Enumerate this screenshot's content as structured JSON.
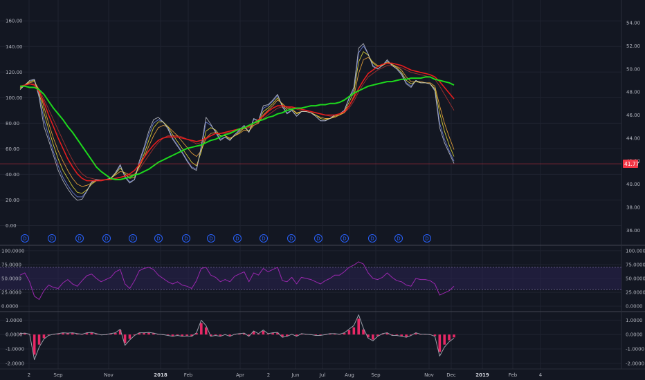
{
  "colors": {
    "background": "#131722",
    "grid": "#1f2330",
    "price": "#c5c8d0",
    "ma_green": "#1ee31e",
    "ma_red": "#f21d1d",
    "ma_orange": "#e8a23a",
    "ma_yellow": "#d9d43a",
    "ma_darkred": "#a83232",
    "ma_blue": "#6b7fd7",
    "rsi_line": "#9c27b0",
    "rsi_band": "#2a2350",
    "hist": "#ff2a6d",
    "osc_line": "#9aa0aa",
    "price_tag": "#f23645",
    "dividend": "#2962ff"
  },
  "chart_data": [
    {
      "panel": "main",
      "type": "line",
      "left_axis": {
        "ticks": [
          "160.00",
          "140.00",
          "120.00",
          "100.00",
          "80.00",
          "60.00",
          "40.00",
          "20.00",
          "0.00"
        ],
        "ylim": [
          -10,
          172
        ]
      },
      "right_axis": {
        "ticks": [
          "54.00",
          "52.00",
          "50.00",
          "48.00",
          "46.00",
          "44.00",
          "42.00",
          "40.00",
          "38.00",
          "36.00"
        ],
        "ylim": [
          35.3,
          55.5
        ]
      },
      "x_axis": {
        "ticks": [
          {
            "label": "2",
            "bold": false
          },
          {
            "label": "Sep",
            "bold": false
          },
          {
            "label": "Nov",
            "bold": false
          },
          {
            "label": "2018",
            "bold": true
          },
          {
            "label": "Feb",
            "bold": false
          },
          {
            "label": "Apr",
            "bold": false
          },
          {
            "label": "2",
            "bold": false
          },
          {
            "label": "Jun",
            "bold": false
          },
          {
            "label": "Jul",
            "bold": false
          },
          {
            "label": "Aug",
            "bold": false
          },
          {
            "label": "Sep",
            "bold": false
          },
          {
            "label": "Nov",
            "bold": false
          },
          {
            "label": "Dec",
            "bold": false
          },
          {
            "label": "2019",
            "bold": true
          },
          {
            "label": "Feb",
            "bold": false
          },
          {
            "label": "4",
            "bold": false
          }
        ]
      },
      "last_price": {
        "label": "41.77",
        "value": 41.77
      },
      "dividend_marker": "D",
      "dividend_count": 16,
      "grid": true,
      "series": [
        {
          "role": "price",
          "color": "#c5c8d0",
          "values": [
            48.2,
            48.6,
            49.0,
            49.1,
            47.5,
            45.0,
            43.8,
            42.5,
            41.2,
            40.3,
            39.6,
            39.0,
            38.6,
            38.7,
            39.4,
            40.2,
            40.4,
            40.3,
            40.4,
            40.5,
            41.0,
            41.7,
            40.6,
            40.1,
            40.4,
            42.0,
            43.2,
            44.6,
            45.6,
            45.8,
            45.4,
            44.8,
            43.9,
            43.3,
            42.7,
            42.0,
            41.4,
            41.2,
            43.3,
            45.8,
            45.2,
            44.5,
            43.8,
            44.1,
            43.8,
            44.3,
            44.7,
            45.1,
            44.5,
            45.7,
            45.5,
            46.8,
            46.9,
            47.3,
            47.8,
            46.7,
            46.1,
            46.4,
            45.9,
            46.3,
            46.3,
            46.2,
            45.9,
            45.5,
            45.5,
            45.7,
            46.0,
            46.1,
            46.4,
            47.5,
            48.4,
            51.8,
            52.2,
            51.3,
            50.2,
            50.0,
            50.3,
            50.8,
            50.3,
            50.0,
            49.5,
            48.7,
            48.4,
            49.0,
            48.8,
            48.8,
            48.7,
            48.1,
            44.9,
            43.6,
            42.7,
            41.8
          ]
        },
        {
          "role": "ma_green",
          "color": "#1ee31e",
          "values": [
            48.5,
            48.5,
            48.4,
            48.4,
            48.2,
            47.8,
            47.2,
            46.6,
            46.1,
            45.6,
            45.0,
            44.5,
            43.9,
            43.3,
            42.7,
            42.1,
            41.5,
            41.1,
            40.8,
            40.5,
            40.4,
            40.4,
            40.5,
            40.6,
            40.8,
            40.9,
            41.1,
            41.3,
            41.6,
            41.9,
            42.1,
            42.3,
            42.5,
            42.7,
            42.9,
            43.1,
            43.2,
            43.3,
            43.4,
            43.6,
            43.8,
            43.9,
            44.1,
            44.3,
            44.4,
            44.6,
            44.8,
            44.9,
            45.1,
            45.3,
            45.5,
            45.6,
            45.8,
            45.9,
            46.1,
            46.2,
            46.4,
            46.5,
            46.6,
            46.6,
            46.7,
            46.8,
            46.8,
            46.9,
            46.9,
            47.0,
            47.0,
            47.1,
            47.3,
            47.6,
            47.9,
            48.1,
            48.3,
            48.5,
            48.6,
            48.7,
            48.8,
            48.9,
            48.9,
            49.0,
            49.1,
            49.1,
            49.2,
            49.2,
            49.2,
            49.3,
            49.3,
            49.1,
            49.0,
            48.9,
            48.8,
            48.6
          ]
        },
        {
          "role": "ma_red",
          "color": "#f21d1d",
          "values": [
            48.5,
            48.6,
            48.7,
            48.6,
            48.0,
            47.1,
            46.0,
            45.0,
            44.0,
            43.1,
            42.2,
            41.5,
            40.9,
            40.5,
            40.3,
            40.3,
            40.3,
            40.3,
            40.4,
            40.4,
            40.5,
            40.6,
            40.7,
            40.9,
            41.2,
            41.7,
            42.3,
            42.9,
            43.4,
            43.8,
            44.0,
            44.1,
            44.1,
            44.1,
            44.0,
            43.9,
            43.8,
            43.7,
            43.8,
            44.0,
            44.2,
            44.4,
            44.4,
            44.5,
            44.6,
            44.7,
            44.8,
            44.9,
            45.0,
            45.3,
            45.6,
            45.9,
            46.3,
            46.6,
            46.8,
            46.8,
            46.7,
            46.7,
            46.6,
            46.5,
            46.4,
            46.3,
            46.2,
            46.1,
            46.0,
            46.0,
            46.0,
            46.1,
            46.3,
            46.8,
            47.5,
            48.3,
            49.0,
            49.6,
            49.9,
            50.2,
            50.4,
            50.5,
            50.5,
            50.4,
            50.3,
            50.1,
            49.9,
            49.8,
            49.7,
            49.6,
            49.5,
            49.3,
            48.9,
            48.4,
            47.9,
            47.4
          ]
        },
        {
          "role": "ma_orange",
          "color": "#e8a23a",
          "values": [
            48.4,
            48.6,
            48.8,
            48.9,
            48.2,
            46.7,
            45.3,
            44.0,
            42.9,
            42.0,
            41.2,
            40.5,
            40.0,
            39.8,
            39.9,
            40.1,
            40.3,
            40.3,
            40.4,
            40.5,
            40.8,
            41.1,
            41.0,
            40.8,
            40.8,
            41.5,
            42.3,
            43.3,
            44.2,
            44.9,
            45.1,
            45.0,
            44.6,
            44.2,
            43.7,
            43.2,
            42.7,
            42.4,
            42.9,
            44.0,
            44.4,
            44.5,
            44.2,
            44.2,
            44.0,
            44.2,
            44.4,
            44.7,
            44.6,
            45.1,
            45.3,
            46.0,
            46.4,
            46.8,
            47.3,
            47.0,
            46.6,
            46.5,
            46.2,
            46.3,
            46.3,
            46.2,
            46.0,
            45.8,
            45.7,
            45.7,
            45.8,
            46.0,
            46.2,
            46.8,
            47.6,
            49.6,
            50.8,
            51.0,
            50.6,
            50.3,
            50.3,
            50.5,
            50.4,
            50.2,
            49.9,
            49.3,
            48.9,
            48.9,
            48.9,
            48.8,
            48.8,
            48.5,
            46.8,
            45.3,
            44.1,
            43.0
          ]
        },
        {
          "role": "ma_yellow",
          "color": "#d9d43a",
          "values": [
            48.3,
            48.6,
            48.9,
            49.0,
            47.9,
            46.2,
            44.8,
            43.4,
            42.2,
            41.2,
            40.5,
            39.8,
            39.3,
            39.2,
            39.5,
            40.0,
            40.3,
            40.3,
            40.4,
            40.5,
            40.9,
            41.4,
            40.9,
            40.5,
            40.6,
            41.6,
            42.6,
            43.8,
            44.9,
            45.4,
            45.4,
            45.0,
            44.3,
            43.7,
            43.1,
            42.5,
            41.9,
            41.6,
            42.8,
            44.6,
            44.9,
            44.7,
            44.2,
            44.2,
            43.9,
            44.2,
            44.5,
            44.9,
            44.6,
            45.3,
            45.4,
            46.3,
            46.6,
            47.0,
            47.5,
            46.9,
            46.4,
            46.5,
            46.1,
            46.3,
            46.3,
            46.2,
            46.0,
            45.7,
            45.6,
            45.7,
            45.9,
            46.0,
            46.3,
            47.1,
            48.0,
            50.6,
            51.5,
            51.2,
            50.5,
            50.2,
            50.3,
            50.6,
            50.4,
            50.1,
            49.7,
            49.0,
            48.7,
            48.9,
            48.8,
            48.8,
            48.7,
            48.3,
            46.2,
            44.6,
            43.4,
            42.4
          ]
        },
        {
          "role": "ma_darkred",
          "color": "#a83232",
          "values": [
            48.5,
            48.6,
            48.7,
            48.7,
            48.2,
            47.4,
            46.5,
            45.6,
            44.7,
            43.8,
            42.9,
            42.1,
            41.4,
            40.9,
            40.6,
            40.5,
            40.4,
            40.4,
            40.4,
            40.4,
            40.5,
            40.6,
            40.7,
            40.7,
            40.9,
            41.3,
            41.9,
            42.5,
            43.1,
            43.6,
            44.0,
            44.2,
            44.2,
            44.2,
            44.1,
            43.9,
            43.7,
            43.5,
            43.6,
            43.9,
            44.2,
            44.4,
            44.4,
            44.4,
            44.5,
            44.6,
            44.7,
            44.8,
            44.9,
            45.1,
            45.4,
            45.7,
            46.0,
            46.3,
            46.6,
            46.7,
            46.7,
            46.6,
            46.5,
            46.4,
            46.4,
            46.3,
            46.2,
            46.1,
            46.0,
            45.9,
            45.9,
            46.0,
            46.2,
            46.6,
            47.2,
            48.0,
            48.7,
            49.3,
            49.6,
            49.9,
            50.1,
            50.3,
            50.3,
            50.2,
            50.1,
            49.9,
            49.7,
            49.6,
            49.5,
            49.4,
            49.3,
            49.1,
            48.5,
            47.8,
            47.1,
            46.4
          ]
        },
        {
          "role": "ma_blue",
          "color": "#6b7fd7",
          "values": [
            48.3,
            48.6,
            48.9,
            49.1,
            47.7,
            45.6,
            44.2,
            42.8,
            41.6,
            40.6,
            39.9,
            39.3,
            38.9,
            38.9,
            39.4,
            40.1,
            40.4,
            40.3,
            40.4,
            40.5,
            40.9,
            41.6,
            40.7,
            40.2,
            40.4,
            41.8,
            43.0,
            44.3,
            45.3,
            45.6,
            45.4,
            44.9,
            44.0,
            43.4,
            42.8,
            42.1,
            41.5,
            41.3,
            43.1,
            45.4,
            45.1,
            44.6,
            43.9,
            44.1,
            43.8,
            44.3,
            44.6,
            45.0,
            44.5,
            45.6,
            45.5,
            46.6,
            46.8,
            47.2,
            47.7,
            46.8,
            46.2,
            46.4,
            45.9,
            46.3,
            46.3,
            46.2,
            45.9,
            45.5,
            45.5,
            45.7,
            46.0,
            46.1,
            46.4,
            47.4,
            48.2,
            51.4,
            52.0,
            51.3,
            50.3,
            50.0,
            50.3,
            50.7,
            50.3,
            50.0,
            49.6,
            48.8,
            48.5,
            49.0,
            48.8,
            48.8,
            48.7,
            48.2,
            45.3,
            43.9,
            42.9,
            42.0
          ]
        }
      ]
    },
    {
      "panel": "rsi",
      "type": "line",
      "axis_ticks": [
        "100.0000",
        "75.0000",
        "50.0000",
        "25.0000",
        "0.0000"
      ],
      "ylim": [
        -6,
        106
      ],
      "band": [
        30,
        70
      ],
      "values": [
        56,
        60,
        44,
        18,
        12,
        28,
        38,
        34,
        32,
        42,
        48,
        40,
        36,
        46,
        55,
        58,
        50,
        44,
        48,
        52,
        62,
        66,
        40,
        32,
        46,
        64,
        68,
        70,
        66,
        56,
        50,
        44,
        40,
        44,
        38,
        36,
        32,
        46,
        68,
        70,
        56,
        52,
        44,
        48,
        44,
        54,
        58,
        62,
        44,
        60,
        56,
        68,
        62,
        66,
        70,
        46,
        44,
        52,
        40,
        52,
        50,
        48,
        44,
        40,
        46,
        50,
        56,
        56,
        62,
        70,
        74,
        80,
        76,
        60,
        50,
        48,
        52,
        60,
        52,
        46,
        44,
        38,
        36,
        50,
        48,
        48,
        46,
        40,
        20,
        24,
        28,
        36
      ]
    },
    {
      "panel": "oscillator",
      "type": "line",
      "axis_ticks": [
        "1.0000",
        "0.0000",
        "-1.0000",
        "-2.0000"
      ],
      "ylim": [
        -2.2,
        1.45
      ],
      "values": [
        0.05,
        0.08,
        0.02,
        -1.4,
        -0.7,
        -0.25,
        -0.05,
        0.02,
        0.05,
        0.1,
        0.08,
        0.1,
        0.05,
        0.02,
        0.1,
        0.12,
        0.05,
        -0.02,
        0.0,
        0.05,
        0.1,
        0.3,
        -0.6,
        -0.3,
        -0.05,
        0.1,
        0.1,
        0.12,
        0.08,
        0.02,
        0.0,
        -0.05,
        -0.1,
        -0.05,
        -0.1,
        -0.08,
        -0.1,
        0.1,
        0.8,
        0.5,
        -0.1,
        -0.05,
        -0.1,
        0.0,
        -0.1,
        0.02,
        0.05,
        0.08,
        -0.1,
        0.2,
        0.05,
        0.25,
        0.05,
        0.1,
        0.12,
        -0.15,
        -0.1,
        0.02,
        -0.1,
        0.05,
        0.02,
        0.0,
        -0.05,
        -0.05,
        0.0,
        0.05,
        0.05,
        0.02,
        0.1,
        0.3,
        0.5,
        1.1,
        0.35,
        -0.2,
        -0.35,
        -0.1,
        0.05,
        0.1,
        -0.05,
        -0.05,
        -0.1,
        -0.15,
        -0.05,
        0.1,
        0.02,
        0.02,
        0.0,
        -0.1,
        -1.2,
        -0.7,
        -0.4,
        -0.2
      ]
    }
  ]
}
